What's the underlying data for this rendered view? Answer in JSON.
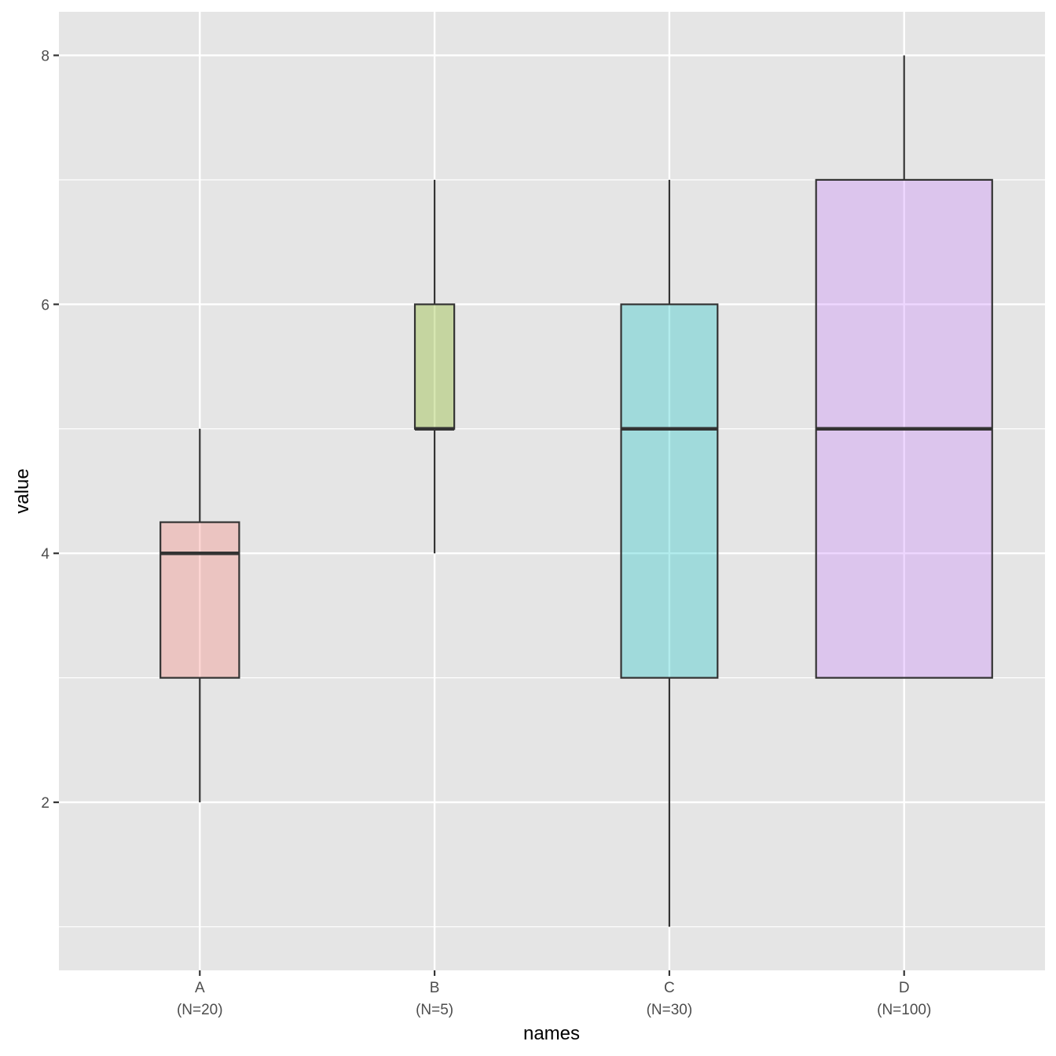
{
  "chart_data": {
    "type": "boxplot",
    "title": "",
    "xlabel": "names",
    "ylabel": "value",
    "categories": [
      "A",
      "B",
      "C",
      "D"
    ],
    "n_labels": [
      "(N=20)",
      "(N=5)",
      "(N=30)",
      "(N=100)"
    ],
    "n": [
      20,
      5,
      30,
      100
    ],
    "boxes": [
      {
        "name": "A",
        "min": 2,
        "q1": 3,
        "median": 4,
        "q3": 4.25,
        "max": 5,
        "fill": "#F8766D"
      },
      {
        "name": "B",
        "min": 4,
        "q1": 5,
        "median": 5,
        "q3": 6,
        "max": 7,
        "fill": "#7CAE00"
      },
      {
        "name": "C",
        "min": 1,
        "q1": 3,
        "median": 5,
        "q3": 6,
        "max": 7,
        "fill": "#00BFC4"
      },
      {
        "name": "D",
        "min": 3,
        "q1": 3,
        "median": 5,
        "q3": 7,
        "max": 8,
        "fill": "#C77CFF"
      }
    ],
    "fill_alpha": 0.3,
    "varwidth": true,
    "ylim": [
      0.65,
      8.35
    ],
    "yticks": [
      2,
      4,
      6,
      8
    ],
    "yminor": [
      1,
      3,
      5,
      7
    ],
    "grid": true,
    "panel_background": "#E5E5E5",
    "grid_color": "#FFFFFF",
    "legend": "none"
  }
}
